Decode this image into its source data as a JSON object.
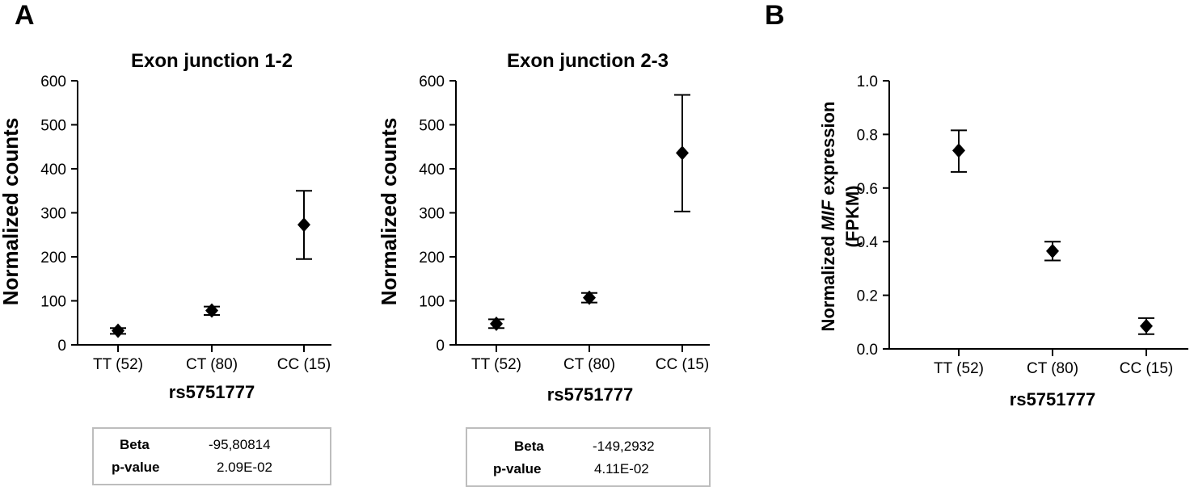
{
  "panels": {
    "a_label": "A",
    "b_label": "B"
  },
  "chart_data": [
    {
      "type": "scatter",
      "title": "Exon junction 1-2",
      "xlabel": "rs5751777",
      "ylabel": "Normalized counts",
      "categories": [
        "TT (52)",
        "CT (80)",
        "CC (15)"
      ],
      "values": [
        32,
        78,
        273
      ],
      "error_low": [
        25,
        68,
        195
      ],
      "error_high": [
        38,
        87,
        350
      ],
      "ylim": [
        0,
        600
      ],
      "yticks": [
        "0",
        "100",
        "200",
        "300",
        "400",
        "500",
        "600"
      ],
      "stats": {
        "beta_label": "Beta",
        "beta_value": "-95,80814",
        "p_label": "p-value",
        "p_value": "2.09E-02"
      }
    },
    {
      "type": "scatter",
      "title": "Exon junction 2-3",
      "xlabel": "rs5751777",
      "ylabel": "Normalized counts",
      "categories": [
        "TT (52)",
        "CT (80)",
        "CC (15)"
      ],
      "values": [
        48,
        107,
        436
      ],
      "error_low": [
        38,
        96,
        303
      ],
      "error_high": [
        58,
        118,
        568
      ],
      "ylim": [
        0,
        600
      ],
      "yticks": [
        "0",
        "100",
        "200",
        "300",
        "400",
        "500",
        "600"
      ],
      "stats": {
        "beta_label": "Beta",
        "beta_value": "-149,2932",
        "p_label": "p-value",
        "p_value": "4.11E-02"
      }
    },
    {
      "type": "scatter",
      "title": "",
      "xlabel": "rs5751777",
      "ylabel_prefix": "Normalized ",
      "ylabel_italic": "MIF",
      "ylabel_suffix": " expression",
      "ylabel_line2": "(FPKM)",
      "categories": [
        "TT (52)",
        "CT (80)",
        "CC (15)"
      ],
      "values": [
        0.74,
        0.365,
        0.085
      ],
      "error_low": [
        0.66,
        0.33,
        0.055
      ],
      "error_high": [
        0.815,
        0.4,
        0.115
      ],
      "ylim": [
        0,
        1.0
      ],
      "yticks": [
        "0.0",
        "0.2",
        "0.4",
        "0.6",
        "0.8",
        "1.0"
      ]
    }
  ]
}
